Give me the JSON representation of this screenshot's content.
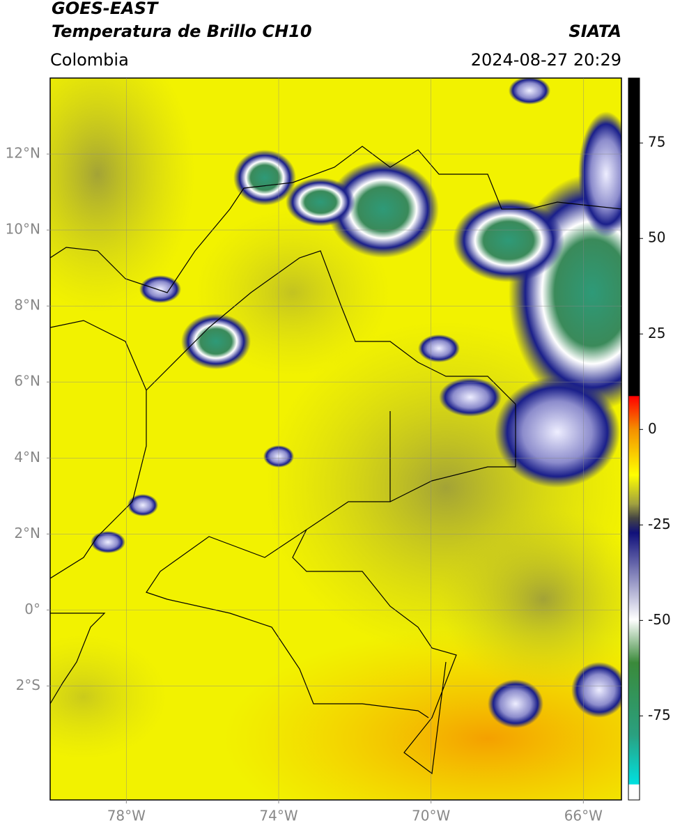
{
  "header": {
    "title": "GOES-EAST",
    "subtitle": "Temperatura de Brillo CH10",
    "source": "SIATA",
    "region": "Colombia",
    "datetime": "2024-08-27 20:29"
  },
  "map": {
    "xlim": [
      -80,
      -65
    ],
    "ylim": [
      -5,
      14
    ],
    "xticks": [
      {
        "value": -78,
        "label": "78°W"
      },
      {
        "value": -74,
        "label": "74°W"
      },
      {
        "value": -70,
        "label": "70°W"
      },
      {
        "value": -66,
        "label": "66°W"
      }
    ],
    "yticks": [
      {
        "value": 12,
        "label": "12°N"
      },
      {
        "value": 10,
        "label": "10°N"
      },
      {
        "value": 8,
        "label": "8°N"
      },
      {
        "value": 6,
        "label": "6°N"
      },
      {
        "value": 4,
        "label": "4°N"
      },
      {
        "value": 2,
        "label": "2°N"
      },
      {
        "value": 0,
        "label": "0°"
      },
      {
        "value": -2,
        "label": "2°S"
      }
    ],
    "grid": true
  },
  "colorbar": {
    "lim": [
      -97,
      92
    ],
    "ticks": [
      75,
      50,
      25,
      0,
      -25,
      -50,
      -75
    ]
  }
}
